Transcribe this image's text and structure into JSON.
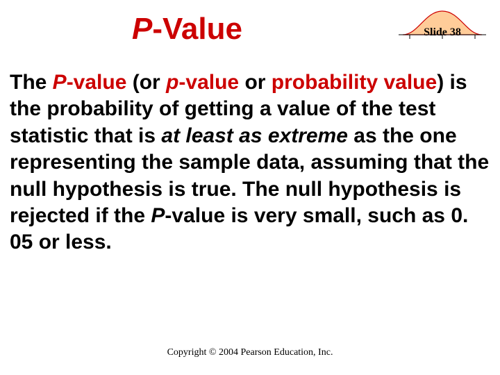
{
  "title": {
    "prefix_italic": "P",
    "suffix": "-Value",
    "color": "#cc0000",
    "fontsize": 44
  },
  "slide_badge": {
    "label": "Slide 38",
    "label_fontsize": 16,
    "curve_stroke": "#cc0000",
    "curve_fill": "#ffcc99",
    "baseline_stroke": "#000000",
    "tick_stroke": "#000000"
  },
  "body": {
    "fontsize": 30,
    "line_height": 1.28,
    "text_color": "#000000",
    "accent_color": "#cc0000",
    "segments": [
      {
        "text": "The ",
        "red": false,
        "italic": false
      },
      {
        "text": "P",
        "red": true,
        "italic": true
      },
      {
        "text": "-value",
        "red": true,
        "italic": false
      },
      {
        "text": " (or ",
        "red": false,
        "italic": false
      },
      {
        "text": "p",
        "red": true,
        "italic": true
      },
      {
        "text": "-value",
        "red": true,
        "italic": false
      },
      {
        "text": " or ",
        "red": false,
        "italic": false
      },
      {
        "text": "probability value",
        "red": true,
        "italic": false
      },
      {
        "text": ") is the probability of getting a value of the test statistic that is ",
        "red": false,
        "italic": false
      },
      {
        "text": "at least as extreme",
        "red": false,
        "italic": true
      },
      {
        "text": " as the one representing the sample data, assuming that the null hypothesis is true.  The null hypothesis is rejected if the ",
        "red": false,
        "italic": false
      },
      {
        "text": "P",
        "red": false,
        "italic": true
      },
      {
        "text": "-value is very small, such as 0. 05 or less.",
        "red": false,
        "italic": false
      }
    ]
  },
  "footer": {
    "text": "Copyright © 2004 Pearson Education, Inc.",
    "fontsize": 14
  },
  "background_color": "#ffffff"
}
